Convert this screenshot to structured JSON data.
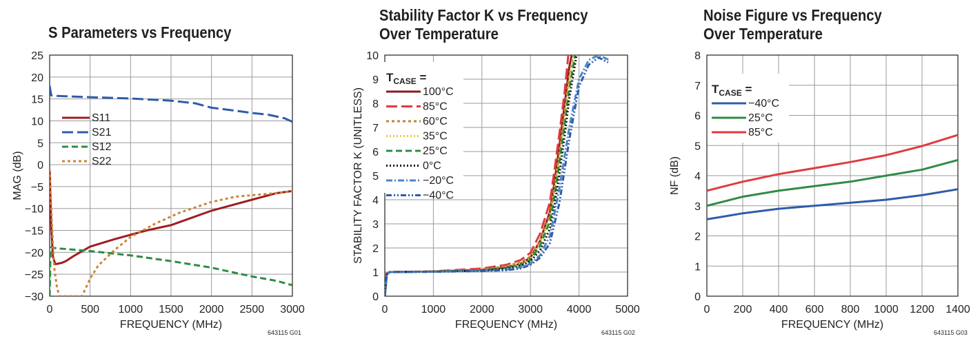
{
  "chart_data": [
    {
      "type": "line",
      "title": "S Parameters vs Frequency",
      "xlabel": "FREQUENCY (MHz)",
      "ylabel": "MAG (dB)",
      "xlim": [
        0,
        3000
      ],
      "ylim": [
        -30,
        25
      ],
      "xticks": [
        0,
        500,
        1000,
        1500,
        2000,
        2500,
        3000
      ],
      "yticks": [
        -30,
        -25,
        -20,
        -15,
        -10,
        -5,
        0,
        5,
        10,
        15,
        20,
        25
      ],
      "grid": true,
      "legend_position": "left",
      "figure_id": "643115 G01",
      "series": [
        {
          "name": "S11",
          "color": "#a01c20",
          "dash": "solid",
          "x": [
            0,
            20,
            40,
            70,
            100,
            150,
            200,
            300,
            500,
            800,
            1200,
            1500,
            2000,
            2500,
            2800,
            3000
          ],
          "y": [
            -1,
            -14,
            -21,
            -22.7,
            -22.6,
            -22.4,
            -22.0,
            -20.8,
            -18.7,
            -17,
            -15,
            -13.8,
            -10.5,
            -8,
            -6.5,
            -6
          ]
        },
        {
          "name": "S21",
          "color": "#2e5caa",
          "dash": "long",
          "x": [
            0,
            20,
            60,
            200,
            500,
            1000,
            1500,
            1800,
            2000,
            2300,
            2500,
            2700,
            2900,
            3000
          ],
          "y": [
            18,
            15.8,
            15.7,
            15.6,
            15.4,
            15.1,
            14.6,
            14,
            13,
            12.3,
            11.8,
            11.4,
            10.6,
            9.8
          ]
        },
        {
          "name": "S12",
          "color": "#2e8b45",
          "dash": "medium",
          "x": [
            0,
            10,
            20,
            30,
            50,
            100,
            300,
            500,
            1000,
            1500,
            2000,
            2500,
            2800,
            3000
          ],
          "y": [
            -30,
            -20,
            -18.8,
            -18.9,
            -19.0,
            -19.1,
            -19.4,
            -19.7,
            -20.7,
            -22,
            -23.5,
            -25.5,
            -26.5,
            -27.5
          ]
        },
        {
          "name": "S22",
          "color": "#c98634",
          "dash": "short",
          "x": [
            0,
            20,
            40,
            60,
            90,
            120,
            400,
            450,
            500,
            600,
            800,
            1000,
            1300,
            1600,
            2000,
            2300,
            2600,
            2800,
            3000
          ],
          "y": [
            -1,
            -10,
            -18,
            -24,
            -28,
            -30,
            -30,
            -28,
            -26,
            -23,
            -19.5,
            -16.5,
            -13.5,
            -11,
            -8.5,
            -7.3,
            -6.8,
            -6.5,
            -6
          ]
        }
      ]
    },
    {
      "type": "line",
      "title": "Stability Factor K vs Frequency Over Temperature",
      "xlabel": "FREQUENCY (MHz)",
      "ylabel": "STABILITY FACTOR K (UNITLESS)",
      "xlim": [
        0,
        5000
      ],
      "ylim": [
        0,
        10
      ],
      "xticks": [
        0,
        1000,
        2000,
        3000,
        4000,
        5000
      ],
      "yticks": [
        0,
        1,
        2,
        3,
        4,
        5,
        6,
        7,
        8,
        9,
        10
      ],
      "grid": true,
      "legend_title": "T",
      "legend_title_sub": "CASE",
      "legend_title_suffix": " =",
      "legend_position": "top-left",
      "figure_id": "643115 G02",
      "series": [
        {
          "name": "100°C",
          "color": "#8b1a1f",
          "dash": "solid",
          "x": [
            0,
            40,
            100,
            1000,
            2000,
            2500,
            2800,
            3000,
            3200,
            3400,
            3500,
            3600,
            3700,
            3800,
            3850
          ],
          "y": [
            0,
            0.9,
            1.0,
            1.02,
            1.1,
            1.2,
            1.35,
            1.6,
            2.3,
            3.5,
            4.8,
            6.3,
            7.9,
            9.5,
            10
          ]
        },
        {
          "name": "85°C",
          "color": "#e03a3e",
          "dash": "long",
          "x": [
            0,
            40,
            100,
            1000,
            2000,
            2500,
            2800,
            3000,
            3200,
            3400,
            3500,
            3600,
            3700,
            3780
          ],
          "y": [
            0,
            0.95,
            1.0,
            1.03,
            1.15,
            1.3,
            1.5,
            1.8,
            2.6,
            3.9,
            5.3,
            6.8,
            8.4,
            10
          ]
        },
        {
          "name": "60°C",
          "color": "#b58a2e",
          "dash": "short",
          "x": [
            0,
            40,
            100,
            1000,
            2000,
            2500,
            2800,
            3000,
            3200,
            3400,
            3500,
            3600,
            3700,
            3800,
            3880
          ],
          "y": [
            0,
            0.9,
            1.0,
            1.02,
            1.1,
            1.25,
            1.4,
            1.65,
            2.3,
            3.4,
            4.6,
            6.0,
            7.6,
            9.2,
            10
          ]
        },
        {
          "name": "35°C",
          "color": "#e8c84a",
          "dash": "dot",
          "x": [
            0,
            40,
            100,
            1000,
            2000,
            2500,
            2800,
            3000,
            3200,
            3400,
            3500,
            3600,
            3700,
            3800,
            3900
          ],
          "y": [
            0,
            0.9,
            1.0,
            1.02,
            1.08,
            1.2,
            1.35,
            1.55,
            2.2,
            3.2,
            4.4,
            5.8,
            7.3,
            8.9,
            10
          ]
        },
        {
          "name": "25°C",
          "color": "#2e8b45",
          "dash": "medium",
          "x": [
            0,
            40,
            100,
            1000,
            2000,
            2500,
            2800,
            3000,
            3200,
            3400,
            3500,
            3600,
            3700,
            3800,
            3920
          ],
          "y": [
            0,
            0.9,
            1.0,
            1.02,
            1.07,
            1.18,
            1.3,
            1.5,
            2.1,
            3.1,
            4.2,
            5.6,
            7.1,
            8.6,
            10
          ]
        },
        {
          "name": "0°C",
          "color": "#111111",
          "dash": "dot",
          "x": [
            0,
            40,
            100,
            1000,
            2000,
            2500,
            2800,
            3000,
            3200,
            3400,
            3500,
            3600,
            3700,
            3800,
            3950
          ],
          "y": [
            0,
            0.9,
            1.0,
            1.02,
            1.06,
            1.15,
            1.25,
            1.45,
            1.9,
            2.8,
            3.8,
            5.1,
            6.6,
            8.2,
            10
          ]
        },
        {
          "name": "−20°C",
          "color": "#4a86c8",
          "dash": "dashdot",
          "x": [
            0,
            40,
            100,
            1000,
            2000,
            2500,
            2800,
            3000,
            3200,
            3400,
            3600,
            3800,
            4000,
            4200,
            4400,
            4620
          ],
          "y": [
            0,
            0.9,
            1.0,
            1.01,
            1.05,
            1.1,
            1.2,
            1.35,
            1.7,
            2.5,
            4.5,
            7.0,
            9.0,
            9.8,
            10,
            9.8
          ]
        },
        {
          "name": "−40°C",
          "color": "#2e5caa",
          "dash": "dashdotdot",
          "x": [
            0,
            40,
            100,
            1000,
            2000,
            2500,
            2800,
            3000,
            3200,
            3400,
            3600,
            3800,
            4000,
            4200,
            4400,
            4600
          ],
          "y": [
            0,
            0.9,
            1.0,
            1.01,
            1.04,
            1.08,
            1.15,
            1.3,
            1.6,
            2.2,
            3.9,
            6.5,
            8.7,
            9.6,
            9.9,
            9.7
          ]
        }
      ]
    },
    {
      "type": "line",
      "title": "Noise Figure vs Frequency Over Temperature",
      "xlabel": "FREQUENCY (MHz)",
      "ylabel": "NF (dB)",
      "xlim": [
        0,
        1400
      ],
      "ylim": [
        0,
        8
      ],
      "xticks": [
        0,
        200,
        400,
        600,
        800,
        1000,
        1200,
        1400
      ],
      "yticks": [
        0,
        1,
        2,
        3,
        4,
        5,
        6,
        7,
        8
      ],
      "grid": true,
      "legend_title": "T",
      "legend_title_sub": "CASE",
      "legend_title_suffix": " =",
      "legend_position": "top-left",
      "figure_id": "643115 G03",
      "series": [
        {
          "name": "−40°C",
          "color": "#2e5caa",
          "dash": "solid",
          "x": [
            0,
            100,
            200,
            400,
            600,
            800,
            1000,
            1200,
            1400
          ],
          "y": [
            2.55,
            2.65,
            2.75,
            2.9,
            3.0,
            3.1,
            3.2,
            3.35,
            3.55
          ]
        },
        {
          "name": "25°C",
          "color": "#2e8b45",
          "dash": "solid",
          "x": [
            0,
            100,
            200,
            400,
            600,
            800,
            1000,
            1200,
            1400
          ],
          "y": [
            3.0,
            3.15,
            3.3,
            3.5,
            3.65,
            3.8,
            4.0,
            4.2,
            4.52
          ]
        },
        {
          "name": "85°C",
          "color": "#e03a3e",
          "dash": "solid",
          "x": [
            0,
            100,
            200,
            400,
            600,
            800,
            1000,
            1200,
            1400
          ],
          "y": [
            3.5,
            3.65,
            3.8,
            4.05,
            4.25,
            4.45,
            4.68,
            4.98,
            5.35
          ]
        }
      ]
    }
  ]
}
